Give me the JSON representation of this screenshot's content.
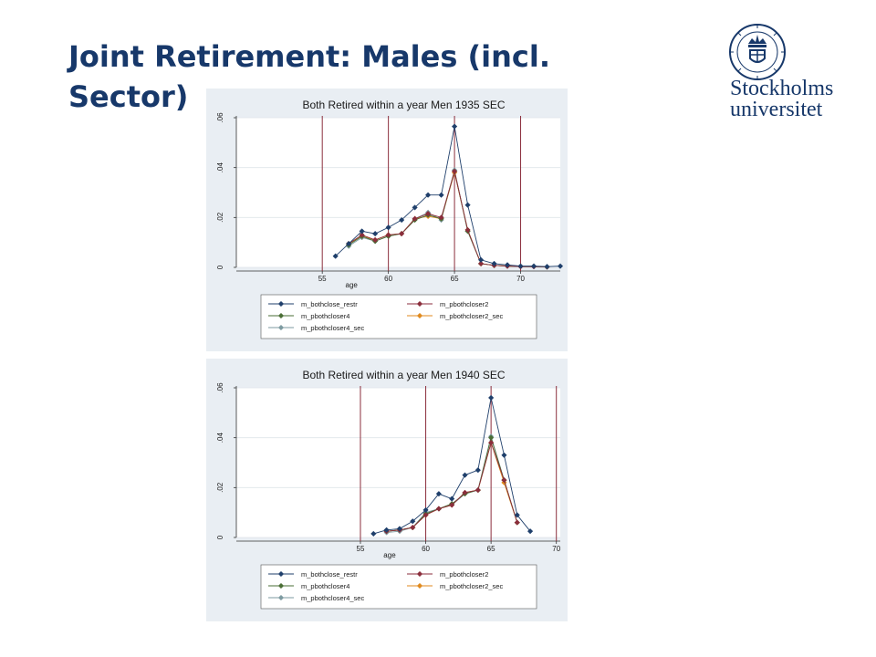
{
  "slide": {
    "title": "Joint Retirement: Males (incl. Sector)"
  },
  "logo": {
    "name_line1": "Stockholms",
    "name_line2": "universitet",
    "seal_ring_text": "UNIVERSITET STOCKHOLMS",
    "color": "#17386a"
  },
  "colors": {
    "m_bothclose_restr": "#1f3f6b",
    "m_pbothcloser2": "#8b2e3c",
    "m_pbothcloser4": "#4a6e35",
    "m_pbothcloser2_sec": "#e08a1e",
    "m_pbothcloser4_sec": "#7d9aa0",
    "reference_line": "#8b2e3c",
    "panel_bg": "#e9eef3"
  },
  "chart_data": [
    {
      "type": "line",
      "title": "Both Retired within a year Men 1935 SEC",
      "xlabel": "age",
      "ylabel": "",
      "xlim": [
        48.5,
        73
      ],
      "ylim": [
        0,
        0.06
      ],
      "xticks": [
        55,
        60,
        65,
        70
      ],
      "yticks": [
        0,
        0.02,
        0.04,
        0.06
      ],
      "ytick_labels": [
        "0",
        ".02",
        ".04",
        ".06"
      ],
      "vlines": [
        55,
        60,
        65,
        70
      ],
      "grid": true,
      "legend_position": "bottom",
      "series": [
        {
          "name": "m_bothclose_restr",
          "x": [
            56,
            57,
            58,
            59,
            60,
            61,
            62,
            63,
            64,
            65,
            66,
            67,
            68,
            69,
            70,
            71,
            72,
            73
          ],
          "y": [
            0.0045,
            0.0095,
            0.0145,
            0.0135,
            0.016,
            0.019,
            0.024,
            0.029,
            0.029,
            0.0565,
            0.025,
            0.003,
            0.0015,
            0.001,
            0.0005,
            0.0005,
            0.0003,
            0.0005
          ]
        },
        {
          "name": "m_pbothcloser2",
          "x": [
            57,
            58,
            59,
            60,
            61,
            62,
            63,
            64,
            65,
            66,
            67,
            68,
            69,
            70,
            71,
            72
          ],
          "y": [
            0.0095,
            0.013,
            0.011,
            0.013,
            0.0135,
            0.0195,
            0.0215,
            0.02,
            0.0385,
            0.015,
            0.0015,
            0.0008,
            0.0005,
            0.0003,
            0.0003,
            0.0002
          ]
        },
        {
          "name": "m_pbothcloser4",
          "x": [
            57,
            58,
            59,
            60,
            61,
            62,
            63,
            64,
            65,
            66,
            67,
            68,
            69,
            70,
            71,
            72
          ],
          "y": [
            0.009,
            0.0125,
            0.0105,
            0.0125,
            0.0135,
            0.019,
            0.021,
            0.0195,
            0.0385,
            0.0145,
            0.0015,
            0.0008,
            0.0005,
            0.0003,
            0.0003,
            0.0002
          ]
        },
        {
          "name": "m_pbothcloser2_sec",
          "x": [
            57,
            58,
            59,
            60,
            61,
            62,
            63,
            64,
            65,
            66,
            67,
            68,
            69,
            70,
            71,
            72
          ],
          "y": [
            0.0095,
            0.0125,
            0.011,
            0.013,
            0.0135,
            0.0195,
            0.0205,
            0.0195,
            0.038,
            0.015,
            0.0015,
            0.0008,
            0.0005,
            0.0003,
            0.0003,
            0.0002
          ]
        },
        {
          "name": "m_pbothcloser4_sec",
          "x": [
            57,
            58,
            59,
            60,
            61,
            62,
            63,
            64,
            65,
            66,
            67,
            68,
            69,
            70,
            71,
            72
          ],
          "y": [
            0.0085,
            0.012,
            0.0105,
            0.0125,
            0.0135,
            0.0195,
            0.022,
            0.019,
            0.039,
            0.0145,
            0.0015,
            0.0008,
            0.0005,
            0.0003,
            0.0003,
            0.0002
          ]
        }
      ]
    },
    {
      "type": "line",
      "title": "Both Retired within a year Men 1940 SEC",
      "xlabel": "age",
      "ylabel": "",
      "xlim": [
        45.5,
        70.3
      ],
      "ylim": [
        0,
        0.06
      ],
      "xticks": [
        55,
        60,
        65,
        70
      ],
      "yticks": [
        0,
        0.02,
        0.04,
        0.06
      ],
      "ytick_labels": [
        "0",
        ".02",
        ".04",
        ".06"
      ],
      "vlines": [
        55,
        60,
        65,
        70
      ],
      "grid": true,
      "legend_position": "bottom",
      "series": [
        {
          "name": "m_bothclose_restr",
          "x": [
            56,
            57,
            58,
            59,
            60,
            61,
            62,
            63,
            64,
            65,
            66,
            67,
            68
          ],
          "y": [
            0.0015,
            0.003,
            0.0035,
            0.0065,
            0.011,
            0.0175,
            0.0155,
            0.025,
            0.027,
            0.056,
            0.033,
            0.009,
            0.0025
          ]
        },
        {
          "name": "m_pbothcloser2",
          "x": [
            57,
            58,
            59,
            60,
            61,
            62,
            63,
            64,
            65,
            66,
            67
          ],
          "y": [
            0.0025,
            0.003,
            0.004,
            0.009,
            0.0115,
            0.013,
            0.018,
            0.019,
            0.038,
            0.023,
            0.006
          ]
        },
        {
          "name": "m_pbothcloser4",
          "x": [
            57,
            58,
            59,
            60,
            61,
            62,
            63,
            64,
            65,
            66,
            67
          ],
          "y": [
            0.0025,
            0.003,
            0.004,
            0.0095,
            0.0115,
            0.0135,
            0.0175,
            0.019,
            0.04,
            0.023,
            0.006
          ]
        },
        {
          "name": "m_pbothcloser2_sec",
          "x": [
            57,
            58,
            59,
            60,
            61,
            62,
            63,
            64,
            65,
            66,
            67
          ],
          "y": [
            0.0025,
            0.003,
            0.004,
            0.009,
            0.0115,
            0.013,
            0.018,
            0.019,
            0.038,
            0.022,
            0.006
          ]
        },
        {
          "name": "m_pbothcloser4_sec",
          "x": [
            57,
            58,
            59,
            60,
            61,
            62,
            63,
            64,
            65,
            66,
            67
          ],
          "y": [
            0.002,
            0.0025,
            0.004,
            0.01,
            0.0115,
            0.013,
            0.0175,
            0.019,
            0.0405,
            0.023,
            0.006
          ]
        }
      ]
    }
  ]
}
